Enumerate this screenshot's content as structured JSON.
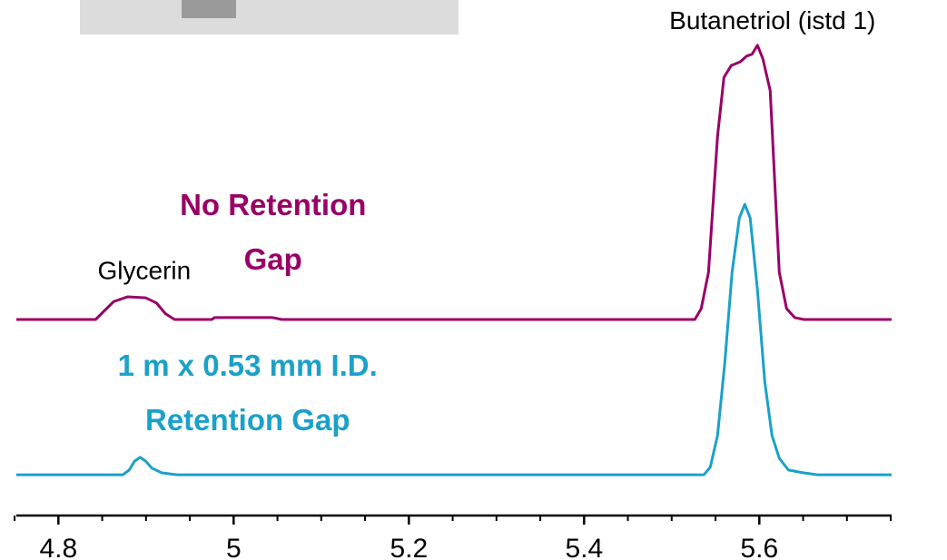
{
  "chart_data": {
    "type": "line",
    "annotations": [
      {
        "text": "Glycerin",
        "x": 4.898,
        "y": 50
      },
      {
        "text": "Butanetriol (istd 1)",
        "x": 5.615,
        "y": 103
      },
      {
        "lines": [
          "No Retention",
          "Gap"
        ],
        "color": "#990066",
        "x": 5.045,
        "y": 58
      },
      {
        "lines": [
          "1 m x 0.53 mm I.D.",
          "Retention Gap"
        ],
        "color": "#1ba1c9",
        "x": 5.016,
        "y": 24
      }
    ],
    "series": [
      {
        "name": "No Retention Gap",
        "color": "#990066",
        "x": [
          4.752,
          4.8425,
          4.8528,
          4.8632,
          4.8788,
          4.8995,
          4.9119,
          4.9223,
          4.9326,
          4.9751,
          4.9782,
          5.0446,
          5.0549,
          5.5264,
          5.5337,
          5.542,
          5.5523,
          5.5596,
          5.5679,
          5.5782,
          5.5855,
          5.5917,
          5.5979,
          5.6041,
          5.6124,
          5.6176,
          5.6228,
          5.6311,
          5.6404,
          5.6508,
          5.751
        ],
        "values": [
          40.0,
          40.0,
          41.9,
          43.8,
          44.8,
          44.6,
          43.5,
          41.2,
          40.0,
          40.0,
          40.4,
          40.4,
          40.0,
          40.0,
          42.3,
          50.0,
          78.8,
          91.3,
          93.8,
          94.6,
          95.8,
          96.2,
          98.1,
          95.2,
          88.5,
          69.2,
          50.0,
          42.3,
          40.4,
          40.0,
          40.0
        ]
      },
      {
        "name": "1 m x 0.53 mm I.D. Retention Gap",
        "color": "#1ba1c9",
        "x": [
          4.752,
          4.8736,
          4.8808,
          4.887,
          4.8933,
          4.8995,
          4.9067,
          4.9181,
          4.9358,
          5.5368,
          5.544,
          5.5523,
          5.5606,
          5.5689,
          5.5772,
          5.5834,
          5.5896,
          5.5979,
          5.6062,
          5.6145,
          5.6228,
          5.6332,
          5.6508,
          5.6663,
          5.751
        ],
        "values": [
          7.1,
          7.1,
          8.1,
          10.0,
          10.8,
          10.0,
          8.5,
          7.5,
          7.1,
          7.1,
          8.7,
          15.4,
          30.8,
          50.0,
          61.5,
          64.4,
          61.5,
          46.2,
          26.9,
          15.4,
          10.6,
          8.1,
          7.5,
          7.1,
          7.1
        ]
      }
    ],
    "xlim": [
      4.752,
      5.751
    ],
    "xticks": [
      4.8,
      5,
      5.2,
      5.4,
      5.6
    ],
    "xminorticks": [
      4.75,
      4.85,
      4.9,
      4.95,
      5.05,
      5.1,
      5.15,
      5.25,
      5.3,
      5.35,
      5.45,
      5.5,
      5.55,
      5.65,
      5.7,
      5.75
    ],
    "ylim": [
      0,
      100
    ]
  }
}
